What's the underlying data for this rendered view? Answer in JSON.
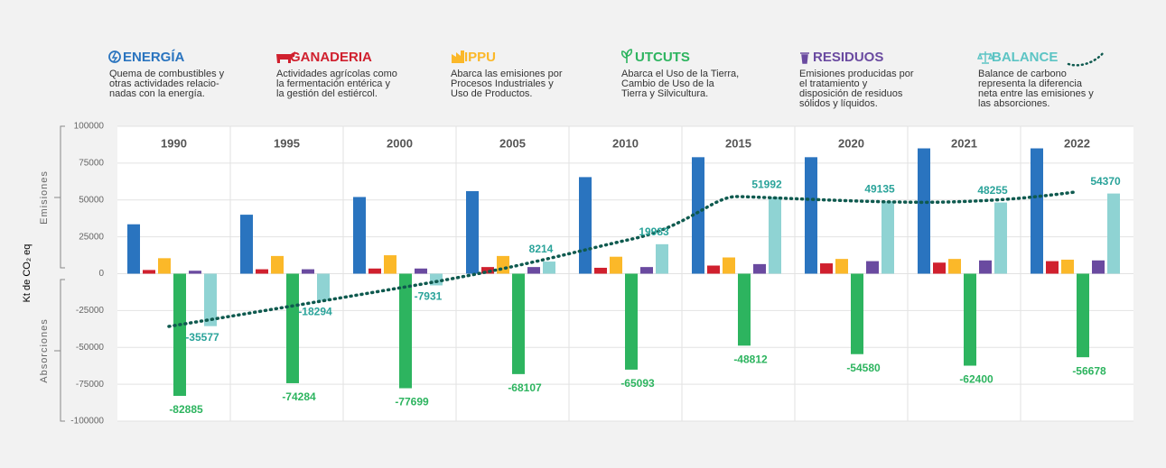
{
  "chart_data": {
    "type": "bar",
    "y_axis_label": "Kt de CO₂ eq",
    "region_labels": [
      "Emisiones",
      "Absorciones"
    ],
    "categories": [
      "1990",
      "1995",
      "2000",
      "2005",
      "2010",
      "2015",
      "2020",
      "2021",
      "2022"
    ],
    "ylim": [
      -100000,
      100000
    ],
    "yticks": [
      -100000,
      -75000,
      -50000,
      -25000,
      0,
      25000,
      50000,
      75000,
      100000
    ],
    "grid": true,
    "series": [
      {
        "name": "ENERGÍA",
        "color": "#2a74bf",
        "description": [
          "Quema de combustibles y",
          "otras actividades relacio-",
          "nadas con la energía."
        ],
        "values": [
          33500,
          40000,
          52000,
          56000,
          65500,
          79000,
          79000,
          85000,
          85000
        ]
      },
      {
        "name": "GANADERIA",
        "color": "#d0202e",
        "description": [
          "Actividades agrícolas como",
          "la fermentación entérica y",
          "la gestión del estiércol."
        ],
        "values": [
          2500,
          3000,
          3500,
          4500,
          4000,
          5500,
          7000,
          7500,
          8500
        ]
      },
      {
        "name": "IPPU",
        "color": "#fbb829",
        "description": [
          "Abarca las emisiones por",
          "Procesos Industriales y",
          "Uso de Productos."
        ],
        "values": [
          10500,
          12000,
          12500,
          12000,
          11500,
          11000,
          10000,
          10000,
          9500
        ]
      },
      {
        "name": "UTCUTS",
        "color": "#2db45f",
        "description": [
          "Abarca el Uso de la Tierra,",
          "Cambio de Uso de la",
          "Tierra y Silvicultura."
        ],
        "values": [
          -82885,
          -74284,
          -77699,
          -68107,
          -65093,
          -48812,
          -54580,
          -62400,
          -56678
        ]
      },
      {
        "name": "RESIDUOS",
        "color": "#6a4aa0",
        "description": [
          "Emisiones producidas por",
          "el tratamiento y",
          "disposición de residuos",
          "sólidos y líquidos."
        ],
        "values": [
          2000,
          3000,
          3500,
          4500,
          4500,
          6500,
          8500,
          9000,
          9000
        ]
      },
      {
        "name": "BALANCE",
        "color": "#8fd3d3",
        "description": [
          "Balance de carbono",
          "representa la diferencia",
          "neta entre las emisiones y",
          "las absorciones."
        ],
        "values": [
          -35577,
          -18294,
          -7931,
          8214,
          19983,
          51992,
          49135,
          48255,
          54370
        ]
      }
    ]
  }
}
